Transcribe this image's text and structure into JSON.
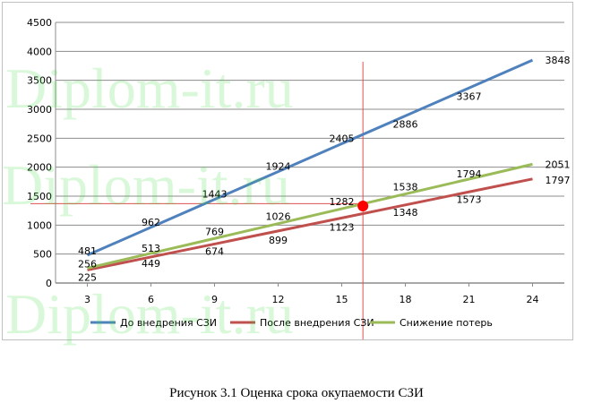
{
  "caption": "Рисунок 3.1 Оценка срока окупаемости СЗИ",
  "watermark": "Diplom-it.ru",
  "chart_data": {
    "type": "line",
    "x": [
      3,
      6,
      9,
      12,
      15,
      18,
      21,
      24
    ],
    "xlim": [
      1.5,
      25.5
    ],
    "ylim": [
      0,
      4500
    ],
    "yticks": [
      0,
      500,
      1000,
      1500,
      2000,
      2500,
      3000,
      3500,
      4000,
      4500
    ],
    "grid": true,
    "legend_position": "bottom",
    "series": [
      {
        "name": "До внедрения  СЗИ",
        "color": "#4f81bd",
        "values": [
          481,
          962,
          1443,
          1924,
          2405,
          2886,
          3367,
          3848
        ]
      },
      {
        "name": "После внедрения  СЗИ",
        "color": "#c0504d",
        "values": [
          225,
          449,
          674,
          899,
          1123,
          1348,
          1573,
          1797
        ]
      },
      {
        "name": "Снижение потерь",
        "color": "#9bbb59",
        "values": [
          256,
          513,
          769,
          1026,
          1282,
          1538,
          1794,
          2051
        ]
      }
    ],
    "annotations": {
      "breakeven_point": {
        "x": 16,
        "y": 1330,
        "color": "#ff0000"
      },
      "vertical_line_x": 16,
      "horizontal_line_y": 1370,
      "line_color": "#e05050"
    }
  }
}
